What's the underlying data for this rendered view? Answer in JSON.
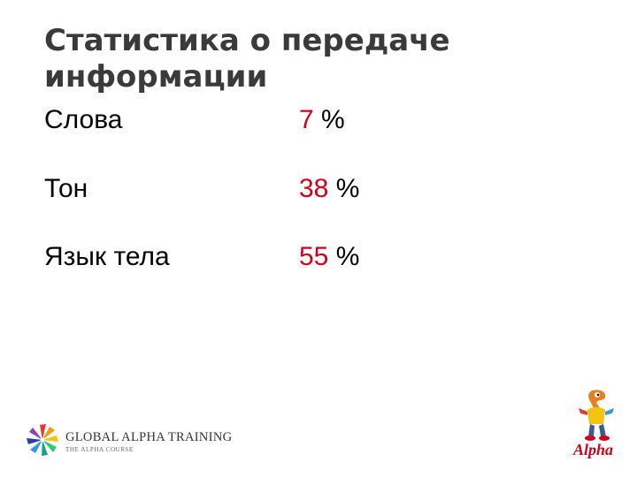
{
  "slide": {
    "title_line1": "Статистика о передаче",
    "title_line2": "информации",
    "stats": [
      {
        "label": "Слова",
        "value": "7",
        "unit": "%"
      },
      {
        "label": "Тон",
        "value": "38",
        "unit": "%"
      },
      {
        "label": "Язык тела",
        "value": "55",
        "unit": "%"
      }
    ]
  },
  "footer": {
    "logo_title": "GLOBAL ALPHA TRAINING",
    "logo_subtitle": "THE ALPHA COURSE",
    "alpha_wordmark": "Alpha",
    "mascot_icon": "alpha-mascot-icon",
    "logo_icon": "pinwheel-logo-icon"
  },
  "colors": {
    "title": "#3a3a3a",
    "accent_red": "#d0021b",
    "text": "#000000",
    "background": "#ffffff"
  }
}
